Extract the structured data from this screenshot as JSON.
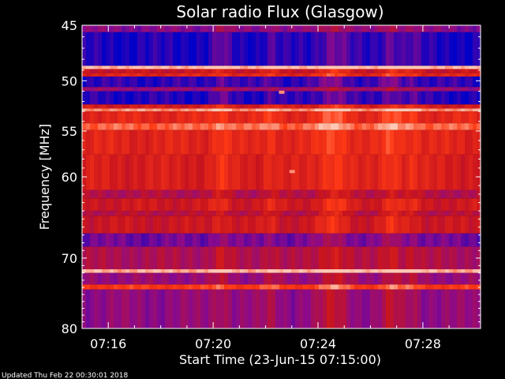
{
  "chart_data": {
    "type": "heatmap",
    "title": "Solar radio Flux (Glasgow)",
    "xlabel": "Start Time (23-Jun-15 07:15:00)",
    "ylabel": "Frequency [MHz]",
    "footer": "Updated Thu Feb 22 00:30:01 2018",
    "x_range_minutes": [
      0.0,
      15.2
    ],
    "x_ticks": [
      {
        "label": "07:16",
        "minutes": 1
      },
      {
        "label": "07:20",
        "minutes": 5
      },
      {
        "label": "07:24",
        "minutes": 9
      },
      {
        "label": "07:28",
        "minutes": 13
      }
    ],
    "y_range_mhz": [
      45,
      80
    ],
    "y_scale": "log",
    "y_ticks": [
      45,
      50,
      55,
      60,
      70,
      80
    ],
    "colormap": [
      "#0000c8",
      "#8a0a8c",
      "#c8141e",
      "#ff3a14",
      "#ffc8b4"
    ],
    "bands": [
      {
        "from": 45.0,
        "to": 45.6,
        "level": 0.25
      },
      {
        "from": 45.6,
        "to": 48.6,
        "level": 0.05
      },
      {
        "from": 48.6,
        "to": 48.9,
        "level": 0.98
      },
      {
        "from": 48.9,
        "to": 49.3,
        "level": 0.5
      },
      {
        "from": 49.3,
        "to": 49.6,
        "level": 0.6
      },
      {
        "from": 49.6,
        "to": 50.6,
        "level": 0.08
      },
      {
        "from": 50.6,
        "to": 51.0,
        "level": 0.3
      },
      {
        "from": 51.0,
        "to": 52.3,
        "level": 0.06
      },
      {
        "from": 52.3,
        "to": 52.7,
        "level": 0.55
      },
      {
        "from": 52.7,
        "to": 53.0,
        "level": 0.9
      },
      {
        "from": 53.0,
        "to": 54.2,
        "level": 0.62
      },
      {
        "from": 54.2,
        "to": 54.9,
        "level": 0.82
      },
      {
        "from": 54.9,
        "to": 57.5,
        "level": 0.6
      },
      {
        "from": 57.5,
        "to": 61.5,
        "level": 0.56
      },
      {
        "from": 61.5,
        "to": 62.5,
        "level": 0.4
      },
      {
        "from": 62.5,
        "to": 64.0,
        "level": 0.52
      },
      {
        "from": 64.0,
        "to": 64.6,
        "level": 0.42
      },
      {
        "from": 64.6,
        "to": 66.8,
        "level": 0.5
      },
      {
        "from": 66.8,
        "to": 68.5,
        "level": 0.2
      },
      {
        "from": 68.5,
        "to": 71.5,
        "level": 0.38
      },
      {
        "from": 71.5,
        "to": 72.0,
        "level": 0.95
      },
      {
        "from": 72.0,
        "to": 73.6,
        "level": 0.3
      },
      {
        "from": 73.6,
        "to": 74.3,
        "level": 0.72
      },
      {
        "from": 74.3,
        "to": 80.0,
        "level": 0.28
      }
    ],
    "time_enhancements": [
      {
        "minutes": 5.3,
        "width": 0.35,
        "boost": 0.12
      },
      {
        "minutes": 7.2,
        "width": 0.3,
        "boost": 0.1
      },
      {
        "minutes": 9.6,
        "width": 0.6,
        "boost": 0.18
      },
      {
        "minutes": 11.8,
        "width": 0.4,
        "boost": 0.16
      },
      {
        "minutes": 12.6,
        "width": 0.3,
        "boost": 0.1
      }
    ],
    "spots": [
      {
        "minutes": 7.6,
        "mhz": 51.1,
        "level": 0.9
      },
      {
        "minutes": 8.0,
        "mhz": 59.4,
        "level": 0.9
      }
    ]
  }
}
